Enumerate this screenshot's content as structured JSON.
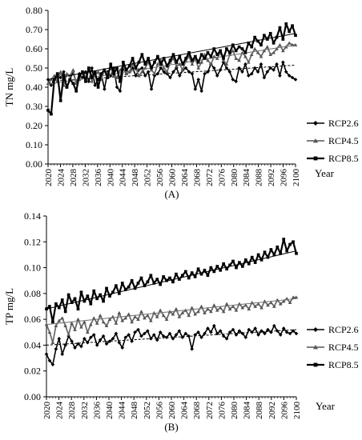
{
  "chart_data": [
    {
      "type": "line",
      "panel_label": "(A)",
      "ylabel": "TN mg/L",
      "xlabel": "Year",
      "ylim": [
        0,
        0.8
      ],
      "yticks": [
        "0.00",
        "0.10",
        "0.20",
        "0.30",
        "0.40",
        "0.50",
        "0.60",
        "0.70",
        "0.80"
      ],
      "xlim": [
        2020,
        2100
      ],
      "xticks": [
        "2020",
        "2024",
        "2028",
        "2032",
        "2036",
        "2040",
        "2044",
        "2048",
        "2052",
        "2056",
        "2060",
        "2064",
        "2068",
        "2072",
        "2076",
        "2080",
        "2084",
        "2088",
        "2092",
        "2096",
        "2100"
      ],
      "legend_position": "right",
      "series": [
        {
          "name": "RCP2.6",
          "marker": "diamond",
          "trend": [
            0.43,
            0.515
          ],
          "values": [
            0.44,
            0.41,
            0.44,
            0.47,
            0.45,
            0.48,
            0.4,
            0.44,
            0.48,
            0.42,
            0.47,
            0.45,
            0.48,
            0.43,
            0.5,
            0.41,
            0.44,
            0.47,
            0.39,
            0.48,
            0.46,
            0.5,
            0.4,
            0.38,
            0.5,
            0.47,
            0.48,
            0.5,
            0.46,
            0.49,
            0.5,
            0.46,
            0.48,
            0.39,
            0.46,
            0.47,
            0.5,
            0.48,
            0.47,
            0.45,
            0.48,
            0.5,
            0.46,
            0.49,
            0.5,
            0.48,
            0.47,
            0.39,
            0.44,
            0.38,
            0.47,
            0.48,
            0.52,
            0.5,
            0.46,
            0.49,
            0.53,
            0.5,
            0.48,
            0.44,
            0.43,
            0.5,
            0.48,
            0.52,
            0.46,
            0.47,
            0.5,
            0.48,
            0.52,
            0.45,
            0.48,
            0.5,
            0.49,
            0.52,
            0.46,
            0.53,
            0.48,
            0.46,
            0.45,
            0.44
          ]
        },
        {
          "name": "RCP4.5",
          "marker": "triangle",
          "trend": [
            0.415,
            0.62
          ],
          "values": [
            0.42,
            0.44,
            0.46,
            0.43,
            0.48,
            0.41,
            0.47,
            0.46,
            0.49,
            0.42,
            0.44,
            0.48,
            0.45,
            0.5,
            0.43,
            0.46,
            0.48,
            0.44,
            0.49,
            0.47,
            0.5,
            0.46,
            0.45,
            0.49,
            0.51,
            0.47,
            0.48,
            0.52,
            0.5,
            0.46,
            0.48,
            0.5,
            0.53,
            0.49,
            0.47,
            0.52,
            0.54,
            0.5,
            0.48,
            0.53,
            0.55,
            0.51,
            0.52,
            0.49,
            0.54,
            0.56,
            0.52,
            0.55,
            0.5,
            0.53,
            0.57,
            0.54,
            0.52,
            0.56,
            0.55,
            0.58,
            0.54,
            0.52,
            0.57,
            0.59,
            0.55,
            0.54,
            0.58,
            0.56,
            0.53,
            0.57,
            0.6,
            0.58,
            0.56,
            0.59,
            0.61,
            0.57,
            0.58,
            0.6,
            0.62,
            0.59,
            0.61,
            0.63,
            0.62,
            0.62
          ]
        },
        {
          "name": "RCP8.5",
          "marker": "square",
          "trend": [
            0.44,
            0.68
          ],
          "values": [
            0.28,
            0.26,
            0.44,
            0.47,
            0.33,
            0.46,
            0.4,
            0.44,
            0.42,
            0.38,
            0.46,
            0.48,
            0.43,
            0.5,
            0.45,
            0.48,
            0.4,
            0.47,
            0.49,
            0.45,
            0.52,
            0.47,
            0.5,
            0.43,
            0.53,
            0.49,
            0.51,
            0.55,
            0.5,
            0.53,
            0.57,
            0.52,
            0.55,
            0.5,
            0.53,
            0.56,
            0.52,
            0.55,
            0.51,
            0.54,
            0.57,
            0.53,
            0.56,
            0.52,
            0.55,
            0.58,
            0.54,
            0.56,
            0.53,
            0.57,
            0.55,
            0.58,
            0.56,
            0.6,
            0.57,
            0.59,
            0.55,
            0.6,
            0.58,
            0.62,
            0.59,
            0.61,
            0.6,
            0.58,
            0.63,
            0.61,
            0.66,
            0.64,
            0.62,
            0.67,
            0.65,
            0.68,
            0.63,
            0.66,
            0.71,
            0.65,
            0.73,
            0.69,
            0.72,
            0.67
          ]
        }
      ]
    },
    {
      "type": "line",
      "panel_label": "(B)",
      "ylabel": "TP mg/L",
      "xlabel": "Year",
      "ylim": [
        0,
        0.14
      ],
      "yticks": [
        "0.00",
        "0.02",
        "0.04",
        "0.06",
        "0.08",
        "0.10",
        "0.12",
        "0.14"
      ],
      "xlim": [
        2020,
        2100
      ],
      "xticks": [
        "2020",
        "2024",
        "2028",
        "2032",
        "2036",
        "2040",
        "2044",
        "2048",
        "2052",
        "2056",
        "2060",
        "2064",
        "2068",
        "2072",
        "2076",
        "2080",
        "2084",
        "2088",
        "2092",
        "2096",
        "2100"
      ],
      "legend_position": "right",
      "series": [
        {
          "name": "RCP2.6",
          "marker": "diamond",
          "trend": [
            0.04,
            0.052
          ],
          "values": [
            0.033,
            0.028,
            0.025,
            0.037,
            0.045,
            0.033,
            0.04,
            0.047,
            0.043,
            0.038,
            0.041,
            0.039,
            0.045,
            0.042,
            0.046,
            0.048,
            0.04,
            0.044,
            0.047,
            0.041,
            0.043,
            0.045,
            0.049,
            0.042,
            0.038,
            0.046,
            0.048,
            0.043,
            0.05,
            0.052,
            0.047,
            0.049,
            0.051,
            0.045,
            0.048,
            0.044,
            0.05,
            0.047,
            0.046,
            0.049,
            0.045,
            0.048,
            0.051,
            0.046,
            0.049,
            0.047,
            0.037,
            0.048,
            0.05,
            0.046,
            0.049,
            0.053,
            0.05,
            0.055,
            0.049,
            0.051,
            0.047,
            0.045,
            0.05,
            0.052,
            0.048,
            0.051,
            0.049,
            0.046,
            0.052,
            0.05,
            0.053,
            0.048,
            0.051,
            0.049,
            0.052,
            0.05,
            0.055,
            0.051,
            0.048,
            0.053,
            0.05,
            0.049,
            0.051,
            0.049
          ]
        },
        {
          "name": "RCP4.5",
          "marker": "triangle",
          "trend": [
            0.056,
            0.076
          ],
          "values": [
            0.056,
            0.05,
            0.042,
            0.055,
            0.059,
            0.061,
            0.055,
            0.048,
            0.057,
            0.052,
            0.06,
            0.054,
            0.058,
            0.05,
            0.056,
            0.061,
            0.057,
            0.063,
            0.058,
            0.055,
            0.06,
            0.062,
            0.057,
            0.065,
            0.059,
            0.061,
            0.064,
            0.058,
            0.062,
            0.06,
            0.066,
            0.061,
            0.063,
            0.059,
            0.065,
            0.062,
            0.067,
            0.063,
            0.06,
            0.066,
            0.064,
            0.068,
            0.062,
            0.065,
            0.067,
            0.063,
            0.069,
            0.064,
            0.066,
            0.07,
            0.065,
            0.068,
            0.066,
            0.071,
            0.067,
            0.069,
            0.066,
            0.072,
            0.068,
            0.07,
            0.067,
            0.072,
            0.069,
            0.071,
            0.068,
            0.073,
            0.07,
            0.072,
            0.069,
            0.074,
            0.071,
            0.073,
            0.07,
            0.075,
            0.072,
            0.074,
            0.076,
            0.073,
            0.077,
            0.077
          ]
        },
        {
          "name": "RCP8.5",
          "marker": "square",
          "trend": [
            0.068,
            0.113
          ],
          "values": [
            0.068,
            0.07,
            0.058,
            0.072,
            0.069,
            0.075,
            0.066,
            0.079,
            0.073,
            0.076,
            0.068,
            0.081,
            0.074,
            0.078,
            0.072,
            0.082,
            0.076,
            0.079,
            0.074,
            0.084,
            0.078,
            0.081,
            0.086,
            0.08,
            0.088,
            0.083,
            0.085,
            0.09,
            0.084,
            0.088,
            0.092,
            0.086,
            0.089,
            0.094,
            0.088,
            0.091,
            0.087,
            0.093,
            0.09,
            0.092,
            0.089,
            0.095,
            0.091,
            0.094,
            0.097,
            0.092,
            0.096,
            0.093,
            0.099,
            0.095,
            0.098,
            0.094,
            0.1,
            0.097,
            0.101,
            0.098,
            0.103,
            0.099,
            0.102,
            0.105,
            0.1,
            0.104,
            0.101,
            0.106,
            0.103,
            0.108,
            0.104,
            0.11,
            0.106,
            0.112,
            0.108,
            0.114,
            0.11,
            0.116,
            0.111,
            0.122,
            0.113,
            0.118,
            0.12,
            0.111
          ]
        }
      ]
    }
  ]
}
